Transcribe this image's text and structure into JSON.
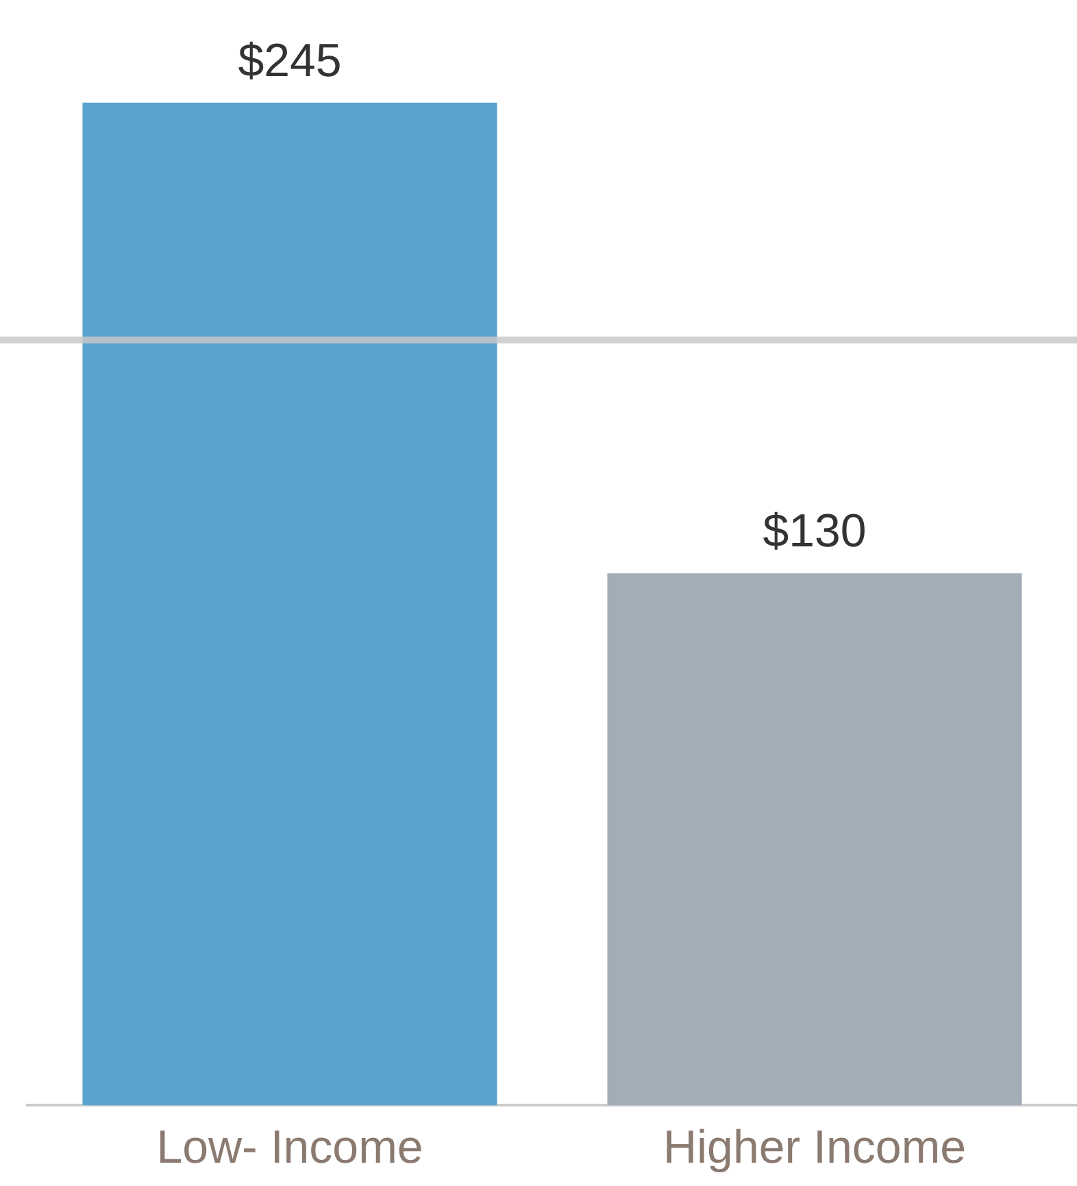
{
  "chart_data": {
    "type": "bar",
    "categories": [
      "Low- Income",
      "Higher Income"
    ],
    "values": [
      245,
      130
    ],
    "colors": [
      "#5ba3cf",
      "#a3adb8"
    ],
    "value_labels": [
      "$245",
      "$130"
    ],
    "ref_lines": [
      {
        "axis": "y",
        "value": 187,
        "color": "#c8c8c8"
      }
    ],
    "grid": false,
    "legend": false
  }
}
